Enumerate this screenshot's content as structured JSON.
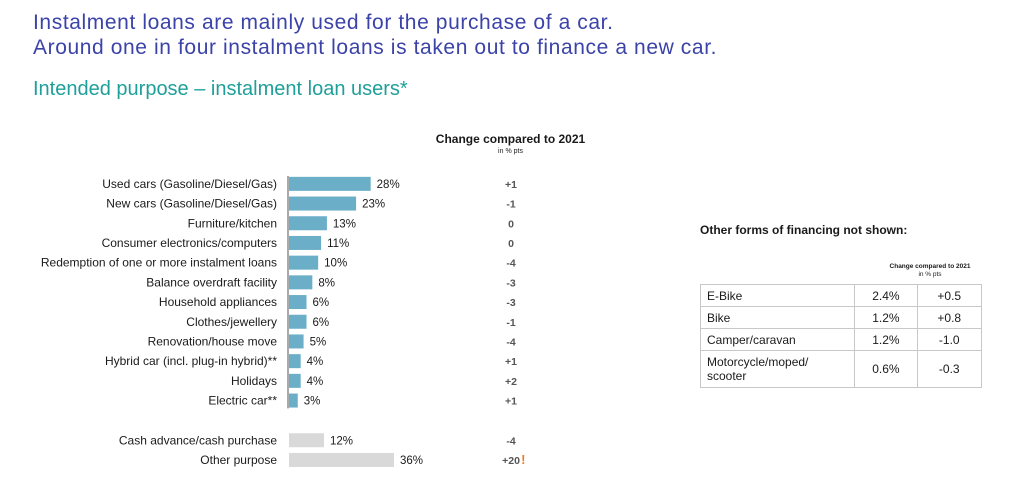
{
  "headline": {
    "line1": "Instalment loans are mainly used for the purchase of a car.",
    "line2": "Around one in four instalment loans is taken out to finance a new car."
  },
  "subtitle": "Intended purpose – instalment loan users*",
  "change_header": {
    "title": "Change compared to 2021",
    "unit": "in % pts"
  },
  "chart_data": {
    "type": "bar",
    "orientation": "horizontal",
    "unit": "%",
    "categories": [
      "Used cars (Gasoline/Diesel/Gas)",
      "New cars (Gasoline/Diesel/Gas)",
      "Furniture/kitchen",
      "Consumer electronics/computers",
      "Redemption of one or more instalment loans",
      "Balance overdraft facility",
      "Household appliances",
      "Clothes/jewellery",
      "Renovation/house move",
      "Hybrid car (incl. plug-in hybrid)**",
      "Holidays",
      "Electric car**",
      "Cash advance/cash purchase",
      "Other purpose"
    ],
    "values": [
      28,
      23,
      13,
      11,
      10,
      8,
      6,
      6,
      5,
      4,
      4,
      3,
      12,
      36
    ],
    "value_labels": [
      "28%",
      "23%",
      "13%",
      "11%",
      "10%",
      "8%",
      "6%",
      "6%",
      "5%",
      "4%",
      "4%",
      "3%",
      "12%",
      "36%"
    ],
    "change_labels": [
      "+1",
      "-1",
      "0",
      "0",
      "-4",
      "-3",
      "-3",
      "-1",
      "-4",
      "+1",
      "+2",
      "+1",
      "-4",
      "+20"
    ],
    "change_flags": [
      false,
      false,
      false,
      false,
      false,
      false,
      false,
      false,
      false,
      false,
      false,
      false,
      false,
      true
    ],
    "flag_mark": "!",
    "group": [
      "main",
      "main",
      "main",
      "main",
      "main",
      "main",
      "main",
      "main",
      "main",
      "main",
      "main",
      "main",
      "other",
      "other"
    ],
    "colors": {
      "main": "#6aaec8",
      "other": "#d9d9d9",
      "flag": "#f07d1a"
    },
    "xlim": [
      0,
      40
    ]
  },
  "other_financing": {
    "title": "Other forms of financing not shown:",
    "header_title": "Change compared to 2021",
    "header_unit": "in % pts",
    "rows": [
      {
        "label": "E-Bike",
        "share": "2.4%",
        "change": "+0.5"
      },
      {
        "label": "Bike",
        "share": "1.2%",
        "change": "+0.8"
      },
      {
        "label": "Camper/caravan",
        "share": "1.2%",
        "change": "-1.0"
      },
      {
        "label": "Motorcycle/moped/ scooter",
        "share": "0.6%",
        "change": "-0.3"
      }
    ]
  }
}
